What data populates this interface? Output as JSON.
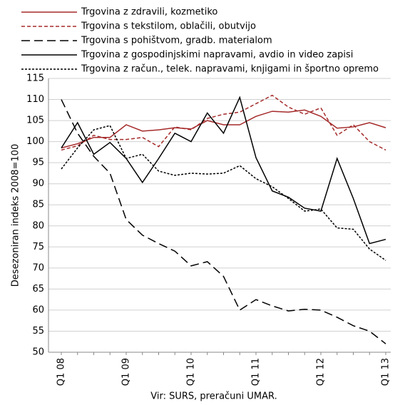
{
  "chart_data": {
    "type": "line",
    "y_label": "Desezoniran indeks 2008=100",
    "x_label": "Vir: SURS, preračuni UMAR.",
    "categories": [
      "Q1 08",
      null,
      null,
      null,
      "Q1 09",
      null,
      null,
      null,
      "Q1 10",
      null,
      null,
      null,
      "Q1 11",
      null,
      null,
      null,
      "Q1 12",
      null,
      null,
      null,
      "Q1 13"
    ],
    "ylim": [
      50,
      115
    ],
    "yticks": [
      50,
      55,
      60,
      65,
      70,
      75,
      80,
      85,
      90,
      95,
      100,
      105,
      110,
      115
    ],
    "grid": true,
    "series": [
      {
        "name": "Trgovina z zdravili, kozmetiko",
        "color": "#a52a2a",
        "line_style": "solid",
        "values": [
          98.5,
          99.5,
          101,
          101,
          104,
          102.5,
          102.8,
          103.3,
          103,
          105,
          104,
          104,
          106,
          107.2,
          107,
          107.5,
          106,
          103.2,
          103.5,
          104.5,
          103.3
        ]
      },
      {
        "name": "Trgovina s tekstilom, oblačili, obutvijo",
        "color": "#a52a2a",
        "line_style": "dashed",
        "values": [
          98,
          99,
          101.5,
          100.5,
          100.5,
          101,
          98.8,
          103.5,
          102.8,
          105.5,
          106.5,
          107,
          109,
          111,
          108.2,
          106.5,
          108,
          101.5,
          104,
          100,
          98
        ]
      },
      {
        "name": "Trgovina s pohištvom, gradb. materialom",
        "color": "#000000",
        "line_style": "longdash",
        "values": [
          110,
          102,
          96.5,
          92.5,
          81.5,
          77.8,
          75.8,
          74,
          70.5,
          71.5,
          68,
          60,
          62.5,
          61,
          59.8,
          60.2,
          60,
          58.3,
          56.3,
          55,
          52
        ]
      },
      {
        "name": "Trgovina z gospodinjskimi napravami, avdio in video zapisi",
        "color": "#000000",
        "line_style": "solid",
        "values": [
          98.5,
          104.5,
          97,
          99.8,
          96,
          90.3,
          96,
          102,
          100,
          106.8,
          102,
          110.5,
          96.2,
          88.3,
          86.8,
          84.2,
          83.5,
          96,
          86.5,
          75.8,
          76.8
        ]
      },
      {
        "name": "Trgovina z račun., telek. napravami, knjigami in športno opremo",
        "color": "#000000",
        "line_style": "dotted",
        "values": [
          93.5,
          98.5,
          102.8,
          103.8,
          96,
          97,
          93,
          92,
          92.5,
          92.3,
          92.5,
          94.3,
          91.2,
          89.3,
          86.5,
          83.5,
          84,
          79.5,
          79.2,
          74.5,
          71.8
        ]
      }
    ]
  }
}
